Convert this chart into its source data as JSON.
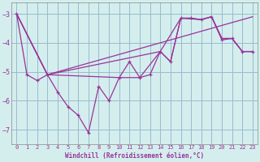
{
  "background_color": "#d4eeee",
  "line_color": "#993399",
  "grid_color": "#99bbcc",
  "xlabel": "Windchill (Refroidissement éolien,°C)",
  "xlabel_color": "#993399",
  "ylim": [
    -7.5,
    -2.6
  ],
  "xlim": [
    -0.5,
    23.5
  ],
  "yticks": [
    -7,
    -6,
    -5,
    -4,
    -3
  ],
  "xticks": [
    0,
    1,
    2,
    3,
    4,
    5,
    6,
    7,
    8,
    9,
    10,
    11,
    12,
    13,
    14,
    15,
    16,
    17,
    18,
    19,
    20,
    21,
    22,
    23
  ],
  "main_series": {
    "x": [
      0,
      1,
      2,
      3,
      4,
      5,
      6,
      7,
      8,
      9,
      10,
      11,
      12,
      13,
      14,
      15,
      16,
      17,
      18,
      19,
      20,
      21,
      22,
      23
    ],
    "y": [
      -3.0,
      -5.1,
      -5.3,
      -5.1,
      -5.7,
      -6.2,
      -6.5,
      -7.1,
      -5.5,
      -6.0,
      -5.2,
      -4.65,
      -5.2,
      -5.1,
      -4.3,
      -4.65,
      -3.15,
      -3.15,
      -3.2,
      -3.1,
      -3.9,
      -3.85,
      -4.3,
      -4.3
    ]
  },
  "smooth_series": [
    {
      "x": [
        0,
        3,
        23
      ],
      "y": [
        -3.0,
        -5.1,
        -3.1
      ]
    },
    {
      "x": [
        0,
        3,
        14,
        16,
        18,
        19,
        20,
        21,
        22,
        23
      ],
      "y": [
        -3.0,
        -5.1,
        -4.3,
        -3.15,
        -3.2,
        -3.1,
        -3.85,
        -3.85,
        -4.3,
        -4.3
      ]
    },
    {
      "x": [
        0,
        3,
        10,
        12,
        14,
        15,
        16,
        17,
        18,
        19,
        20,
        21,
        22,
        23
      ],
      "y": [
        -3.0,
        -5.1,
        -5.2,
        -5.2,
        -4.3,
        -4.65,
        -3.15,
        -3.15,
        -3.2,
        -3.1,
        -3.85,
        -3.85,
        -4.3,
        -4.3
      ]
    }
  ]
}
